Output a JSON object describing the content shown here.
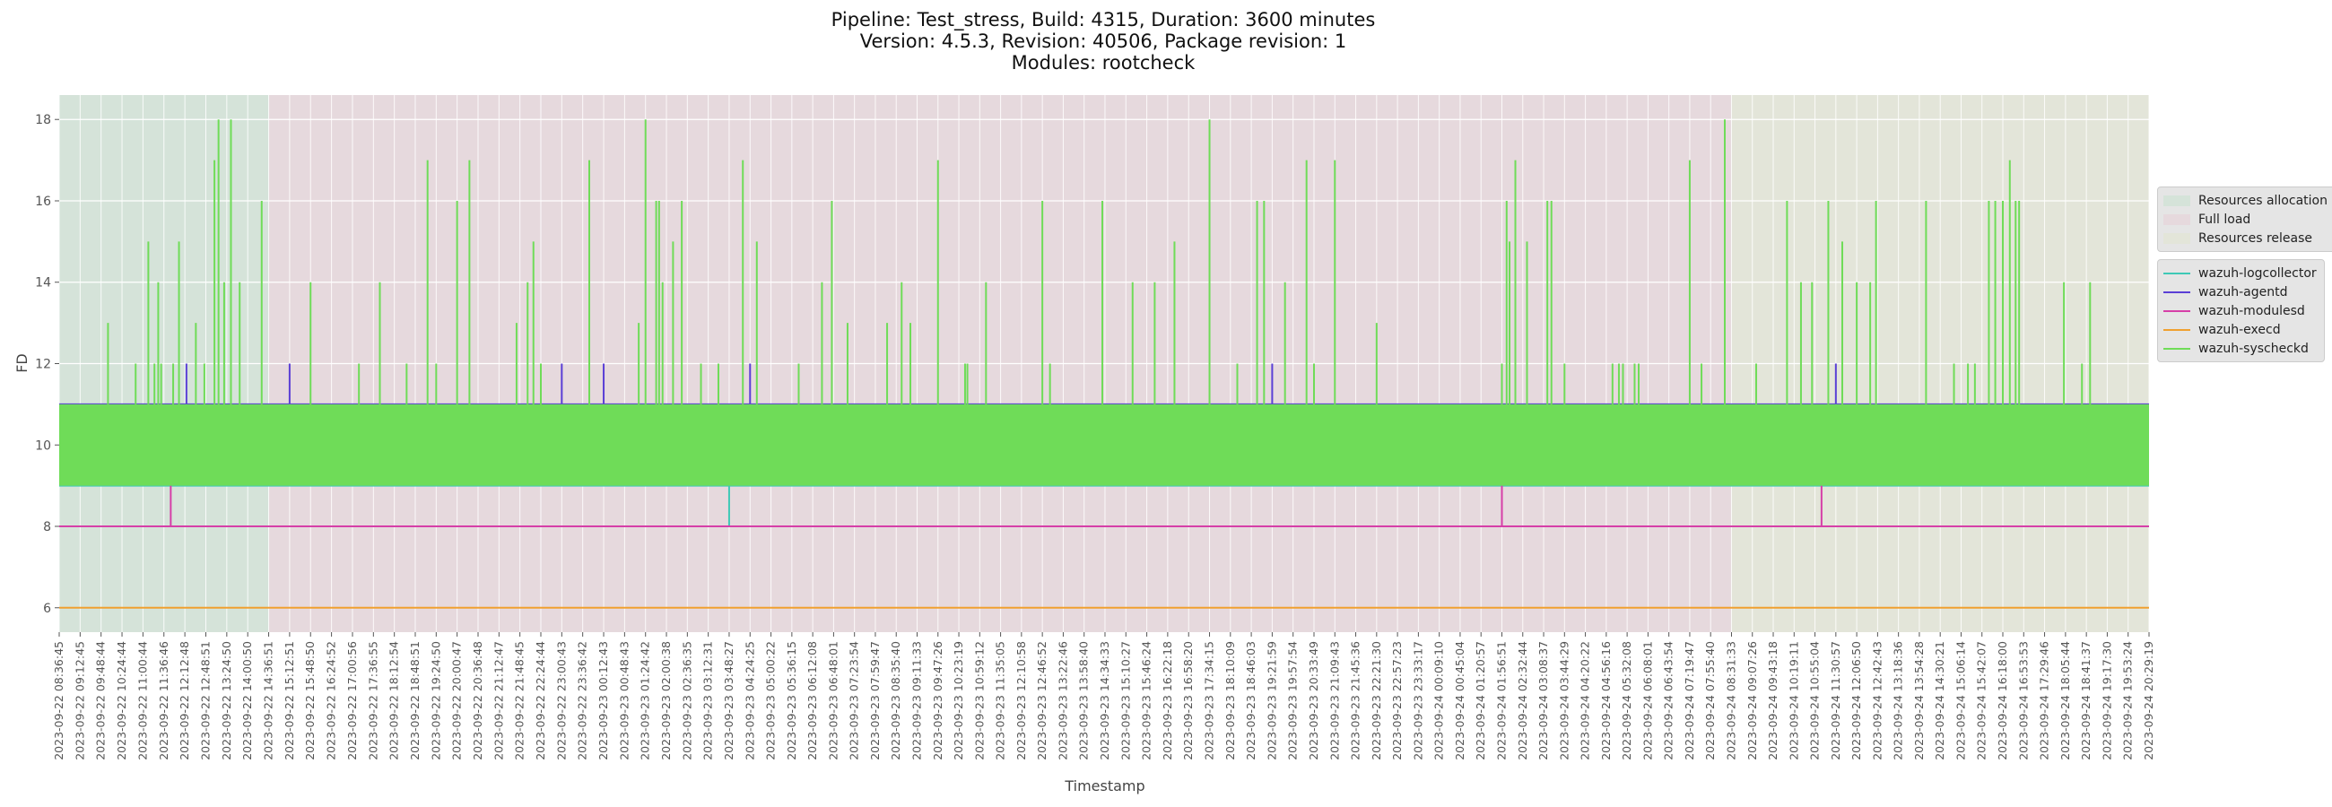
{
  "title_lines": [
    "Pipeline: Test_stress, Build: 4315, Duration: 3600 minutes",
    "Version: 4.5.3, Revision: 40506, Package revision: 1",
    "Modules: rootcheck"
  ],
  "chart_data": {
    "type": "line",
    "xlabel": "Timestamp",
    "ylabel": "FD",
    "ylim": [
      5.4,
      18.6
    ],
    "yticks": [
      6,
      8,
      10,
      12,
      14,
      16,
      18
    ],
    "grid": true,
    "legend_position": "right",
    "x_tick_labels": [
      "2023-09-22 08:36:45",
      "2023-09-22 09:12:45",
      "2023-09-22 09:48:44",
      "2023-09-22 10:24:44",
      "2023-09-22 11:00:44",
      "2023-09-22 11:36:46",
      "2023-09-22 12:12:48",
      "2023-09-22 12:48:51",
      "2023-09-22 13:24:50",
      "2023-09-22 14:00:50",
      "2023-09-22 14:36:51",
      "2023-09-22 15:12:51",
      "2023-09-22 15:48:50",
      "2023-09-22 16:24:52",
      "2023-09-22 17:00:56",
      "2023-09-22 17:36:55",
      "2023-09-22 18:12:54",
      "2023-09-22 18:48:51",
      "2023-09-22 19:24:50",
      "2023-09-22 20:00:47",
      "2023-09-22 20:36:48",
      "2023-09-22 21:12:47",
      "2023-09-22 21:48:45",
      "2023-09-22 22:24:44",
      "2023-09-22 23:00:43",
      "2023-09-22 23:36:42",
      "2023-09-23 00:12:43",
      "2023-09-23 00:48:43",
      "2023-09-23 01:24:42",
      "2023-09-23 02:00:38",
      "2023-09-23 02:36:35",
      "2023-09-23 03:12:31",
      "2023-09-23 03:48:27",
      "2023-09-23 04:24:25",
      "2023-09-23 05:00:22",
      "2023-09-23 05:36:15",
      "2023-09-23 06:12:08",
      "2023-09-23 06:48:01",
      "2023-09-23 07:23:54",
      "2023-09-23 07:59:47",
      "2023-09-23 08:35:40",
      "2023-09-23 09:11:33",
      "2023-09-23 09:47:26",
      "2023-09-23 10:23:19",
      "2023-09-23 10:59:12",
      "2023-09-23 11:35:05",
      "2023-09-23 12:10:58",
      "2023-09-23 12:46:52",
      "2023-09-23 13:22:46",
      "2023-09-23 13:58:40",
      "2023-09-23 14:34:33",
      "2023-09-23 15:10:27",
      "2023-09-23 15:46:24",
      "2023-09-23 16:22:18",
      "2023-09-23 16:58:20",
      "2023-09-23 17:34:15",
      "2023-09-23 18:10:09",
      "2023-09-23 18:46:03",
      "2023-09-23 19:21:59",
      "2023-09-23 19:57:54",
      "2023-09-23 20:33:49",
      "2023-09-23 21:09:43",
      "2023-09-23 21:45:36",
      "2023-09-23 22:21:30",
      "2023-09-23 22:57:23",
      "2023-09-23 23:33:17",
      "2023-09-24 00:09:10",
      "2023-09-24 00:45:04",
      "2023-09-24 01:20:57",
      "2023-09-24 01:56:51",
      "2023-09-24 02:32:44",
      "2023-09-24 03:08:37",
      "2023-09-24 03:44:29",
      "2023-09-24 04:20:22",
      "2023-09-24 04:56:16",
      "2023-09-24 05:32:08",
      "2023-09-24 06:08:01",
      "2023-09-24 06:43:54",
      "2023-09-24 07:19:47",
      "2023-09-24 07:55:40",
      "2023-09-24 08:31:33",
      "2023-09-24 09:07:26",
      "2023-09-24 09:43:18",
      "2023-09-24 10:19:11",
      "2023-09-24 10:55:04",
      "2023-09-24 11:30:57",
      "2023-09-24 12:06:50",
      "2023-09-24 12:42:43",
      "2023-09-24 13:18:36",
      "2023-09-24 13:54:28",
      "2023-09-24 14:30:21",
      "2023-09-24 15:06:14",
      "2023-09-24 15:42:07",
      "2023-09-24 16:18:00",
      "2023-09-24 16:53:53",
      "2023-09-24 17:29:46",
      "2023-09-24 18:05:44",
      "2023-09-24 18:41:37",
      "2023-09-24 19:17:30",
      "2023-09-24 19:53:24",
      "2023-09-24 20:29:19"
    ],
    "phases": [
      {
        "name": "Resources allocation",
        "color": "#d5e3d9",
        "start": "2023-09-22 08:36:45",
        "end": "2023-09-22 14:36:51"
      },
      {
        "name": "Full load",
        "color": "#e6d9dd",
        "start": "2023-09-22 14:36:51",
        "end": "2023-09-24 08:31:33"
      },
      {
        "name": "Resources release",
        "color": "#e3e5d9",
        "start": "2023-09-24 08:31:33",
        "end": "2023-09-24 20:29:19"
      }
    ],
    "series": [
      {
        "name": "wazuh-logcollector",
        "color": "#3ec9b6",
        "baseline": 9,
        "spikes": [
          {
            "x": "2023-09-23 03:48:27",
            "y": 8
          }
        ]
      },
      {
        "name": "wazuh-agentd",
        "color": "#5a3fd6",
        "baseline": 11,
        "spikes": [
          {
            "x": "2023-09-22 12:15:30",
            "y": 12
          },
          {
            "x": "2023-09-22 15:12:51",
            "y": 12
          },
          {
            "x": "2023-09-22 23:00:43",
            "y": 12
          },
          {
            "x": "2023-09-23 00:12:43",
            "y": 12
          },
          {
            "x": "2023-09-23 04:24:25",
            "y": 12
          },
          {
            "x": "2023-09-23 19:21:59",
            "y": 12
          },
          {
            "x": "2023-09-24 11:30:57",
            "y": 12
          }
        ]
      },
      {
        "name": "wazuh-modulesd",
        "color": "#d63fa8",
        "baseline": 8,
        "spikes": [
          {
            "x": "2023-09-22 11:48:30",
            "y": 9
          },
          {
            "x": "2023-09-24 01:56:51",
            "y": 9
          },
          {
            "x": "2023-09-24 11:06:20",
            "y": 9
          }
        ]
      },
      {
        "name": "wazuh-execd",
        "color": "#f0a030",
        "baseline": 6,
        "spikes": []
      },
      {
        "name": "wazuh-syscheckd",
        "color": "#6fdc58",
        "band": [
          9,
          11
        ],
        "spikes": [
          {
            "x": "2023-09-22 10:00:40",
            "y": 13
          },
          {
            "x": "2023-09-22 10:48:10",
            "y": 12
          },
          {
            "x": "2023-09-22 11:10:00",
            "y": 15
          },
          {
            "x": "2023-09-22 11:20:30",
            "y": 12
          },
          {
            "x": "2023-09-22 11:27:00",
            "y": 14
          },
          {
            "x": "2023-09-22 11:32:00",
            "y": 12
          },
          {
            "x": "2023-09-22 11:52:40",
            "y": 12
          },
          {
            "x": "2023-09-22 12:02:40",
            "y": 15
          },
          {
            "x": "2023-09-22 12:31:40",
            "y": 13
          },
          {
            "x": "2023-09-22 12:46:20",
            "y": 12
          },
          {
            "x": "2023-09-22 13:03:40",
            "y": 17
          },
          {
            "x": "2023-09-22 13:10:40",
            "y": 18
          },
          {
            "x": "2023-09-22 13:20:20",
            "y": 14
          },
          {
            "x": "2023-09-22 13:32:00",
            "y": 18
          },
          {
            "x": "2023-09-22 13:47:00",
            "y": 14
          },
          {
            "x": "2023-09-22 14:24:50",
            "y": 16
          },
          {
            "x": "2023-09-22 15:48:50",
            "y": 14
          },
          {
            "x": "2023-09-22 17:12:00",
            "y": 12
          },
          {
            "x": "2023-09-22 17:48:00",
            "y": 14
          },
          {
            "x": "2023-09-22 18:34:00",
            "y": 12
          },
          {
            "x": "2023-09-22 19:10:00",
            "y": 17
          },
          {
            "x": "2023-09-22 19:24:50",
            "y": 12
          },
          {
            "x": "2023-09-22 20:00:47",
            "y": 16
          },
          {
            "x": "2023-09-22 20:22:00",
            "y": 17
          },
          {
            "x": "2023-09-22 21:43:00",
            "y": 13
          },
          {
            "x": "2023-09-22 22:02:00",
            "y": 14
          },
          {
            "x": "2023-09-22 22:12:00",
            "y": 15
          },
          {
            "x": "2023-09-22 22:24:44",
            "y": 12
          },
          {
            "x": "2023-09-22 23:48:00",
            "y": 17
          },
          {
            "x": "2023-09-23 01:13:00",
            "y": 13
          },
          {
            "x": "2023-09-23 01:24:42",
            "y": 18
          },
          {
            "x": "2023-09-23 01:43:00",
            "y": 16
          },
          {
            "x": "2023-09-23 01:48:00",
            "y": 16
          },
          {
            "x": "2023-09-23 01:54:00",
            "y": 14
          },
          {
            "x": "2023-09-23 02:12:00",
            "y": 15
          },
          {
            "x": "2023-09-23 02:27:00",
            "y": 16
          },
          {
            "x": "2023-09-23 03:00:00",
            "y": 12
          },
          {
            "x": "2023-09-23 03:30:00",
            "y": 12
          },
          {
            "x": "2023-09-23 04:12:00",
            "y": 17
          },
          {
            "x": "2023-09-23 04:36:00",
            "y": 15
          },
          {
            "x": "2023-09-23 05:48:00",
            "y": 12
          },
          {
            "x": "2023-09-23 06:28:00",
            "y": 14
          },
          {
            "x": "2023-09-23 06:45:00",
            "y": 16
          },
          {
            "x": "2023-09-23 07:12:00",
            "y": 13
          },
          {
            "x": "2023-09-23 08:20:00",
            "y": 13
          },
          {
            "x": "2023-09-23 08:45:00",
            "y": 14
          },
          {
            "x": "2023-09-23 09:00:00",
            "y": 13
          },
          {
            "x": "2023-09-23 09:47:26",
            "y": 17
          },
          {
            "x": "2023-09-23 10:34:00",
            "y": 12
          },
          {
            "x": "2023-09-23 10:38:00",
            "y": 12
          },
          {
            "x": "2023-09-23 11:10:00",
            "y": 14
          },
          {
            "x": "2023-09-23 12:46:52",
            "y": 16
          },
          {
            "x": "2023-09-23 13:00:00",
            "y": 12
          },
          {
            "x": "2023-09-23 14:30:00",
            "y": 16
          },
          {
            "x": "2023-09-23 15:22:00",
            "y": 14
          },
          {
            "x": "2023-09-23 16:00:00",
            "y": 14
          },
          {
            "x": "2023-09-23 16:34:00",
            "y": 15
          },
          {
            "x": "2023-09-23 17:34:15",
            "y": 18
          },
          {
            "x": "2023-09-23 18:22:00",
            "y": 12
          },
          {
            "x": "2023-09-23 18:56:00",
            "y": 16
          },
          {
            "x": "2023-09-23 19:08:00",
            "y": 16
          },
          {
            "x": "2023-09-23 19:44:00",
            "y": 14
          },
          {
            "x": "2023-09-23 20:21:00",
            "y": 17
          },
          {
            "x": "2023-09-23 20:33:49",
            "y": 12
          },
          {
            "x": "2023-09-23 21:09:43",
            "y": 17
          },
          {
            "x": "2023-09-23 22:21:30",
            "y": 13
          },
          {
            "x": "2023-09-24 01:56:51",
            "y": 12
          },
          {
            "x": "2023-09-24 02:05:00",
            "y": 16
          },
          {
            "x": "2023-09-24 02:10:00",
            "y": 15
          },
          {
            "x": "2023-09-24 02:20:00",
            "y": 17
          },
          {
            "x": "2023-09-24 02:40:00",
            "y": 15
          },
          {
            "x": "2023-09-24 03:15:00",
            "y": 16
          },
          {
            "x": "2023-09-24 03:22:00",
            "y": 16
          },
          {
            "x": "2023-09-24 03:44:29",
            "y": 12
          },
          {
            "x": "2023-09-24 05:07:00",
            "y": 12
          },
          {
            "x": "2023-09-24 05:18:00",
            "y": 12
          },
          {
            "x": "2023-09-24 05:25:00",
            "y": 12
          },
          {
            "x": "2023-09-24 05:45:00",
            "y": 12
          },
          {
            "x": "2023-09-24 05:52:00",
            "y": 12
          },
          {
            "x": "2023-09-24 07:19:47",
            "y": 17
          },
          {
            "x": "2023-09-24 07:40:00",
            "y": 12
          },
          {
            "x": "2023-09-24 08:20:00",
            "y": 18
          },
          {
            "x": "2023-09-24 09:14:00",
            "y": 12
          },
          {
            "x": "2023-09-24 10:07:00",
            "y": 16
          },
          {
            "x": "2023-09-24 10:31:00",
            "y": 14
          },
          {
            "x": "2023-09-24 10:50:00",
            "y": 14
          },
          {
            "x": "2023-09-24 11:18:00",
            "y": 16
          },
          {
            "x": "2023-09-24 11:42:00",
            "y": 15
          },
          {
            "x": "2023-09-24 12:06:50",
            "y": 14
          },
          {
            "x": "2023-09-24 12:30:00",
            "y": 14
          },
          {
            "x": "2023-09-24 12:40:00",
            "y": 16
          },
          {
            "x": "2023-09-24 14:06:00",
            "y": 16
          },
          {
            "x": "2023-09-24 14:54:00",
            "y": 12
          },
          {
            "x": "2023-09-24 15:18:00",
            "y": 12
          },
          {
            "x": "2023-09-24 15:30:00",
            "y": 12
          },
          {
            "x": "2023-09-24 15:54:00",
            "y": 16
          },
          {
            "x": "2023-09-24 16:05:00",
            "y": 16
          },
          {
            "x": "2023-09-24 16:18:00",
            "y": 16
          },
          {
            "x": "2023-09-24 16:30:00",
            "y": 17
          },
          {
            "x": "2023-09-24 16:40:00",
            "y": 16
          },
          {
            "x": "2023-09-24 16:46:00",
            "y": 16
          },
          {
            "x": "2023-09-24 18:03:00",
            "y": 14
          },
          {
            "x": "2023-09-24 18:34:00",
            "y": 12
          },
          {
            "x": "2023-09-24 18:48:00",
            "y": 14
          }
        ]
      }
    ]
  }
}
